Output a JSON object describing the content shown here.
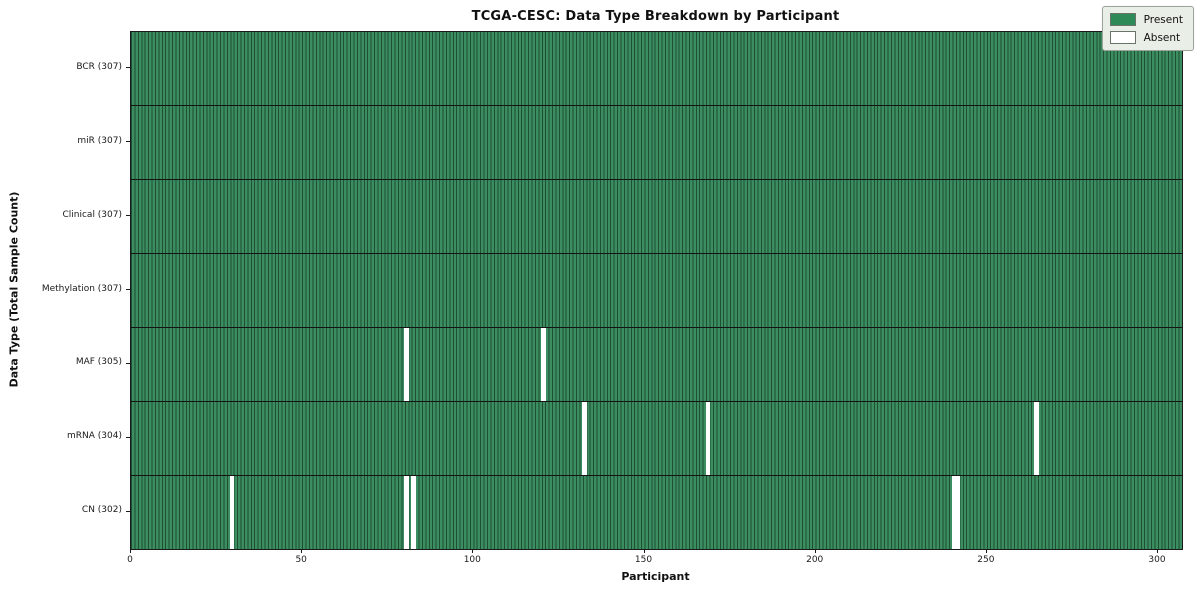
{
  "figure": {
    "title": "TCGA-CESC: Data Type Breakdown by Participant",
    "xlabel": "Participant",
    "ylabel": "Data Type (Total Sample Count)"
  },
  "chart_data": {
    "type": "heatmap",
    "title": "TCGA-CESC: Data Type Breakdown by Participant",
    "xlabel": "Participant",
    "ylabel": "Data Type (Total Sample Count)",
    "n_participants": 307,
    "x_range": [
      0,
      307
    ],
    "x_ticks": [
      0,
      50,
      100,
      150,
      200,
      250,
      300
    ],
    "grid": false,
    "legend_position": "upper right",
    "legend": [
      {
        "label": "Present",
        "color": "#2e8b57"
      },
      {
        "label": "Absent",
        "color": "#ffffff"
      }
    ],
    "colors": {
      "present_fill": "#3c8e60",
      "present_edge": "#1e4f33",
      "absent_fill": "#ffffff",
      "row_divider": "#141414",
      "legend_bg": "#e9efe7"
    },
    "rows": [
      {
        "label": "BCR (307)",
        "data_type": "BCR",
        "present_count": 307,
        "absent_participants": []
      },
      {
        "label": "miR (307)",
        "data_type": "miR",
        "present_count": 307,
        "absent_participants": []
      },
      {
        "label": "Clinical (307)",
        "data_type": "Clinical",
        "present_count": 307,
        "absent_participants": []
      },
      {
        "label": "Methylation (307)",
        "data_type": "Methylation",
        "present_count": 307,
        "absent_participants": []
      },
      {
        "label": "MAF (305)",
        "data_type": "MAF",
        "present_count": 305,
        "absent_participants": [
          80,
          120
        ]
      },
      {
        "label": "mRNA (304)",
        "data_type": "mRNA",
        "present_count": 304,
        "absent_participants": [
          132,
          168,
          264
        ]
      },
      {
        "label": "CN (302)",
        "data_type": "CN",
        "present_count": 302,
        "absent_participants": [
          29,
          80,
          82,
          240,
          241
        ]
      }
    ]
  }
}
